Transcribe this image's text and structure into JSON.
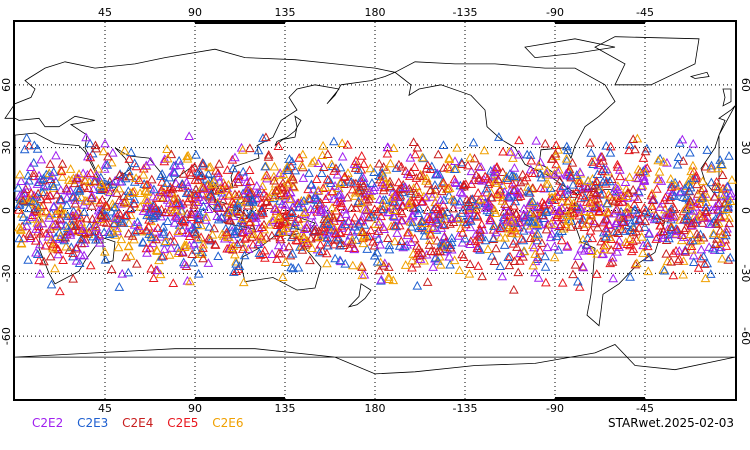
{
  "map": {
    "projection": "cylindrical equidistant",
    "center_longitude": 180,
    "lon_range": [
      0,
      360
    ],
    "lat_range": [
      -90,
      90
    ],
    "grid": "dotted",
    "lon_ticks": [
      "45",
      "90",
      "135",
      "180",
      "-135",
      "-90",
      "-45"
    ],
    "lat_ticks_left": [
      "60",
      "30",
      "0",
      "-30",
      "-60"
    ],
    "lat_ticks_right": [
      "60",
      "30",
      "0",
      "-30",
      "-60"
    ],
    "observation_band_lat": [
      -42,
      42
    ],
    "marker_shape": "triangle-outline"
  },
  "legend": {
    "items": [
      {
        "label": "C2E2",
        "color": "#a020f0"
      },
      {
        "label": "C2E3",
        "color": "#1e5fd0"
      },
      {
        "label": "C2E4",
        "color": "#c81e1e"
      },
      {
        "label": "C2E5",
        "color": "#e8161e"
      },
      {
        "label": "C2E6",
        "color": "#f0a000"
      }
    ]
  },
  "stamp": "STARwet.2025-02-03"
}
